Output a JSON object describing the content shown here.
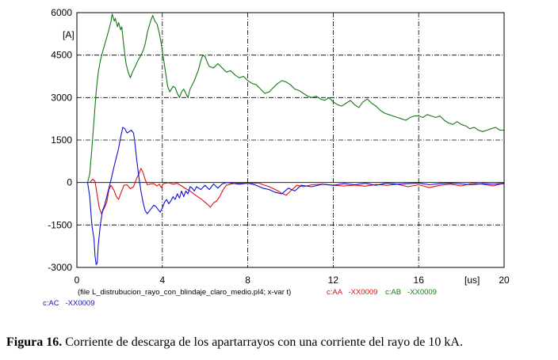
{
  "chart_data": {
    "type": "line",
    "xlabel": "",
    "ylabel": "",
    "x_unit": "[us]",
    "y_unit": "[A]",
    "xlim": [
      0,
      20
    ],
    "ylim": [
      -3000,
      6000
    ],
    "x_ticks": [
      "0",
      "4",
      "8",
      "12",
      "16",
      "20"
    ],
    "y_ticks": [
      "6000",
      "4500",
      "3000",
      "1500",
      "0",
      "-1500",
      "-3000"
    ],
    "grid": true,
    "file_label": "(file L_distrubucion_rayo_con_blindaje_claro_medio.pl4; x-var t)",
    "series": [
      {
        "name": "c:AA   -XX0009",
        "color": "#e01010",
        "points": [
          [
            0.6,
            0
          ],
          [
            0.75,
            120
          ],
          [
            0.85,
            40
          ],
          [
            0.95,
            -450
          ],
          [
            1.05,
            -900
          ],
          [
            1.15,
            -1100
          ],
          [
            1.25,
            -950
          ],
          [
            1.4,
            -700
          ],
          [
            1.5,
            -250
          ],
          [
            1.6,
            -100
          ],
          [
            1.75,
            -300
          ],
          [
            1.85,
            -500
          ],
          [
            1.95,
            -600
          ],
          [
            2.05,
            -400
          ],
          [
            2.2,
            -100
          ],
          [
            2.35,
            -80
          ],
          [
            2.5,
            -220
          ],
          [
            2.65,
            -150
          ],
          [
            2.8,
            150
          ],
          [
            2.9,
            300
          ],
          [
            3.0,
            500
          ],
          [
            3.1,
            350
          ],
          [
            3.2,
            100
          ],
          [
            3.3,
            -80
          ],
          [
            3.45,
            -50
          ],
          [
            3.6,
            -40
          ],
          [
            3.75,
            -120
          ],
          [
            3.85,
            -60
          ],
          [
            3.95,
            -180
          ],
          [
            4.05,
            -40
          ],
          [
            4.3,
            -10
          ],
          [
            4.5,
            -60
          ],
          [
            4.7,
            -30
          ],
          [
            4.9,
            -120
          ],
          [
            5.1,
            -220
          ],
          [
            5.3,
            -300
          ],
          [
            5.5,
            -420
          ],
          [
            5.7,
            -520
          ],
          [
            5.85,
            -600
          ],
          [
            6.0,
            -700
          ],
          [
            6.1,
            -760
          ],
          [
            6.25,
            -870
          ],
          [
            6.4,
            -720
          ],
          [
            6.55,
            -650
          ],
          [
            6.7,
            -480
          ],
          [
            6.85,
            -250
          ],
          [
            7.0,
            -100
          ],
          [
            7.3,
            -40
          ],
          [
            7.6,
            -20
          ],
          [
            8.0,
            -30
          ],
          [
            8.5,
            -20
          ],
          [
            9.0,
            -150
          ],
          [
            9.3,
            -250
          ],
          [
            9.6,
            -380
          ],
          [
            9.8,
            -450
          ],
          [
            10.0,
            -300
          ],
          [
            10.3,
            -100
          ],
          [
            10.6,
            -150
          ],
          [
            11.0,
            -80
          ],
          [
            11.5,
            -60
          ],
          [
            12.0,
            -100
          ],
          [
            12.5,
            -120
          ],
          [
            13.0,
            -90
          ],
          [
            13.5,
            -130
          ],
          [
            14.0,
            -70
          ],
          [
            14.5,
            -100
          ],
          [
            15.0,
            -60
          ],
          [
            15.5,
            -150
          ],
          [
            16.0,
            -80
          ],
          [
            16.5,
            -180
          ],
          [
            17.0,
            -100
          ],
          [
            17.5,
            -60
          ],
          [
            18.0,
            -120
          ],
          [
            18.5,
            -30
          ],
          [
            19.0,
            -60
          ],
          [
            19.5,
            -120
          ],
          [
            19.8,
            -60
          ],
          [
            20.0,
            -40
          ]
        ]
      },
      {
        "name": "c:AB   -XX0009",
        "color": "#117a11",
        "points": [
          [
            0.5,
            0
          ],
          [
            0.6,
            300
          ],
          [
            0.7,
            1200
          ],
          [
            0.8,
            2200
          ],
          [
            0.9,
            3200
          ],
          [
            1.0,
            3900
          ],
          [
            1.1,
            4300
          ],
          [
            1.2,
            4600
          ],
          [
            1.35,
            5000
          ],
          [
            1.5,
            5400
          ],
          [
            1.6,
            5700
          ],
          [
            1.65,
            5950
          ],
          [
            1.75,
            5700
          ],
          [
            1.8,
            5800
          ],
          [
            1.9,
            5500
          ],
          [
            1.95,
            5650
          ],
          [
            2.05,
            5400
          ],
          [
            2.1,
            5500
          ],
          [
            2.2,
            4800
          ],
          [
            2.3,
            4200
          ],
          [
            2.4,
            3900
          ],
          [
            2.5,
            3700
          ],
          [
            2.6,
            3900
          ],
          [
            2.7,
            4050
          ],
          [
            2.85,
            4300
          ],
          [
            3.0,
            4500
          ],
          [
            3.1,
            4650
          ],
          [
            3.2,
            4900
          ],
          [
            3.3,
            5300
          ],
          [
            3.45,
            5700
          ],
          [
            3.55,
            5900
          ],
          [
            3.65,
            5700
          ],
          [
            3.75,
            5600
          ],
          [
            3.85,
            5300
          ],
          [
            3.95,
            4900
          ],
          [
            4.05,
            4400
          ],
          [
            4.15,
            3900
          ],
          [
            4.25,
            3400
          ],
          [
            4.35,
            3200
          ],
          [
            4.5,
            3400
          ],
          [
            4.6,
            3350
          ],
          [
            4.7,
            3150
          ],
          [
            4.8,
            3000
          ],
          [
            4.9,
            3200
          ],
          [
            5.0,
            3300
          ],
          [
            5.1,
            3150
          ],
          [
            5.2,
            3000
          ],
          [
            5.3,
            3300
          ],
          [
            5.4,
            3450
          ],
          [
            5.5,
            3600
          ],
          [
            5.6,
            3800
          ],
          [
            5.7,
            4000
          ],
          [
            5.8,
            4300
          ],
          [
            5.9,
            4500
          ],
          [
            6.0,
            4450
          ],
          [
            6.1,
            4250
          ],
          [
            6.2,
            4100
          ],
          [
            6.4,
            4050
          ],
          [
            6.6,
            4200
          ],
          [
            6.8,
            4050
          ],
          [
            7.0,
            3900
          ],
          [
            7.2,
            3950
          ],
          [
            7.4,
            3800
          ],
          [
            7.6,
            3700
          ],
          [
            7.8,
            3750
          ],
          [
            8.0,
            3600
          ],
          [
            8.2,
            3500
          ],
          [
            8.4,
            3450
          ],
          [
            8.6,
            3300
          ],
          [
            8.8,
            3150
          ],
          [
            9.0,
            3200
          ],
          [
            9.2,
            3350
          ],
          [
            9.4,
            3500
          ],
          [
            9.6,
            3600
          ],
          [
            9.8,
            3550
          ],
          [
            10.0,
            3450
          ],
          [
            10.2,
            3300
          ],
          [
            10.4,
            3250
          ],
          [
            10.6,
            3150
          ],
          [
            10.8,
            3050
          ],
          [
            11.0,
            3000
          ],
          [
            11.2,
            3050
          ],
          [
            11.4,
            2950
          ],
          [
            11.6,
            2900
          ],
          [
            11.8,
            3000
          ],
          [
            12.0,
            2850
          ],
          [
            12.2,
            2750
          ],
          [
            12.4,
            2700
          ],
          [
            12.6,
            2800
          ],
          [
            12.8,
            2900
          ],
          [
            13.0,
            2750
          ],
          [
            13.2,
            2650
          ],
          [
            13.4,
            2850
          ],
          [
            13.6,
            2950
          ],
          [
            13.8,
            2800
          ],
          [
            14.0,
            2700
          ],
          [
            14.2,
            2550
          ],
          [
            14.4,
            2450
          ],
          [
            14.6,
            2400
          ],
          [
            14.8,
            2350
          ],
          [
            15.0,
            2300
          ],
          [
            15.2,
            2250
          ],
          [
            15.4,
            2200
          ],
          [
            15.6,
            2300
          ],
          [
            15.8,
            2350
          ],
          [
            16.0,
            2350
          ],
          [
            16.2,
            2300
          ],
          [
            16.4,
            2400
          ],
          [
            16.6,
            2350
          ],
          [
            16.8,
            2300
          ],
          [
            17.0,
            2350
          ],
          [
            17.2,
            2200
          ],
          [
            17.4,
            2100
          ],
          [
            17.6,
            2050
          ],
          [
            17.8,
            2150
          ],
          [
            18.0,
            2050
          ],
          [
            18.2,
            2000
          ],
          [
            18.4,
            1900
          ],
          [
            18.6,
            1950
          ],
          [
            18.8,
            1850
          ],
          [
            19.0,
            1800
          ],
          [
            19.2,
            1850
          ],
          [
            19.4,
            1900
          ],
          [
            19.6,
            1950
          ],
          [
            19.8,
            1850
          ],
          [
            20.0,
            1850
          ]
        ]
      },
      {
        "name": "c:AC   -XX0009",
        "color": "#1010d0",
        "points": [
          [
            0.5,
            0
          ],
          [
            0.6,
            -500
          ],
          [
            0.7,
            -1500
          ],
          [
            0.8,
            -2000
          ],
          [
            0.85,
            -2600
          ],
          [
            0.9,
            -2900
          ],
          [
            0.95,
            -2850
          ],
          [
            1.0,
            -2200
          ],
          [
            1.1,
            -1500
          ],
          [
            1.2,
            -1000
          ],
          [
            1.3,
            -800
          ],
          [
            1.4,
            -500
          ],
          [
            1.5,
            -200
          ],
          [
            1.6,
            100
          ],
          [
            1.75,
            600
          ],
          [
            1.85,
            900
          ],
          [
            1.95,
            1200
          ],
          [
            2.05,
            1600
          ],
          [
            2.15,
            1950
          ],
          [
            2.25,
            1900
          ],
          [
            2.35,
            1750
          ],
          [
            2.45,
            1800
          ],
          [
            2.55,
            1850
          ],
          [
            2.65,
            1750
          ],
          [
            2.7,
            1500
          ],
          [
            2.8,
            800
          ],
          [
            2.9,
            200
          ],
          [
            3.0,
            -300
          ],
          [
            3.1,
            -700
          ],
          [
            3.2,
            -1000
          ],
          [
            3.3,
            -1100
          ],
          [
            3.4,
            -1000
          ],
          [
            3.5,
            -900
          ],
          [
            3.6,
            -800
          ],
          [
            3.7,
            -850
          ],
          [
            3.8,
            -950
          ],
          [
            3.9,
            -1050
          ],
          [
            4.0,
            -900
          ],
          [
            4.1,
            -700
          ],
          [
            4.2,
            -600
          ],
          [
            4.3,
            -750
          ],
          [
            4.4,
            -650
          ],
          [
            4.5,
            -500
          ],
          [
            4.6,
            -600
          ],
          [
            4.7,
            -400
          ],
          [
            4.8,
            -550
          ],
          [
            4.9,
            -300
          ],
          [
            5.0,
            -500
          ],
          [
            5.1,
            -300
          ],
          [
            5.2,
            -400
          ],
          [
            5.3,
            -150
          ],
          [
            5.4,
            -200
          ],
          [
            5.5,
            -300
          ],
          [
            5.6,
            -150
          ],
          [
            5.8,
            -250
          ],
          [
            6.0,
            -100
          ],
          [
            6.2,
            -250
          ],
          [
            6.4,
            -50
          ],
          [
            6.6,
            -200
          ],
          [
            6.8,
            -50
          ],
          [
            7.0,
            0
          ],
          [
            7.3,
            -30
          ],
          [
            7.6,
            -60
          ],
          [
            8.0,
            -20
          ],
          [
            8.4,
            -100
          ],
          [
            8.7,
            -200
          ],
          [
            9.0,
            -250
          ],
          [
            9.3,
            -350
          ],
          [
            9.6,
            -400
          ],
          [
            9.9,
            -200
          ],
          [
            10.2,
            -300
          ],
          [
            10.5,
            -100
          ],
          [
            11.0,
            -150
          ],
          [
            11.5,
            -60
          ],
          [
            12.0,
            -100
          ],
          [
            12.5,
            -40
          ],
          [
            13.0,
            -80
          ],
          [
            13.5,
            -30
          ],
          [
            14.0,
            -100
          ],
          [
            14.5,
            -20
          ],
          [
            15.0,
            -60
          ],
          [
            15.5,
            -40
          ],
          [
            16.0,
            -20
          ],
          [
            16.5,
            -80
          ],
          [
            17.0,
            -40
          ],
          [
            17.5,
            -20
          ],
          [
            18.0,
            -50
          ],
          [
            18.5,
            -80
          ],
          [
            19.0,
            -40
          ],
          [
            19.5,
            -60
          ],
          [
            20.0,
            -30
          ]
        ]
      }
    ]
  },
  "caption": {
    "label": "Figura 16.",
    "text": " Corriente de descarga de los apartarrayos con una corriente del rayo de 10 kA."
  }
}
